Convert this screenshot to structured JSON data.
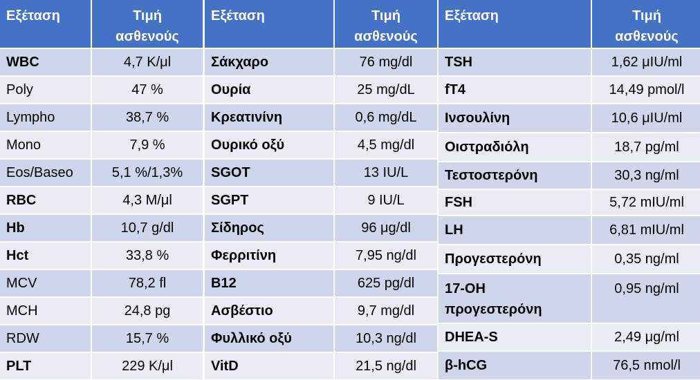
{
  "tables": [
    {
      "headers": [
        "Εξέταση",
        "Τιμή ασθενούς"
      ],
      "rows": [
        [
          "WBC",
          "4,7 K/μl"
        ],
        [
          "Poly",
          "47 %"
        ],
        [
          "Lympho",
          "38,7 %"
        ],
        [
          "Mono",
          "7,9 %"
        ],
        [
          "Eos/Baseo",
          "5,1 %/1,3%"
        ],
        [
          "RBC",
          "4,3 M/μl"
        ],
        [
          "Hb",
          "10,7 g/dl"
        ],
        [
          "Hct",
          "33,8 %"
        ],
        [
          "MCV",
          "78,2 fl"
        ],
        [
          "MCH",
          "24,8 pg"
        ],
        [
          "RDW",
          "15,7 %"
        ],
        [
          "PLT",
          "229 K/μl"
        ]
      ]
    },
    {
      "headers": [
        "Εξέταση",
        "Τιμή ασθενούς"
      ],
      "rows": [
        [
          "Σάκχαρο",
          "76 mg/dl"
        ],
        [
          "Ουρία",
          "25 mg/dL"
        ],
        [
          "Κρεατινίνη",
          "0,6 mg/dL"
        ],
        [
          "Ουρικό οξύ",
          "4,5 mg/dl"
        ],
        [
          "SGOT",
          "13 IU/L"
        ],
        [
          "SGPT",
          "9 IU/L"
        ],
        [
          "Σίδηρος",
          "96 μg/dl"
        ],
        [
          "Φερριτίνη",
          "7,95 ng/dl"
        ],
        [
          "B12",
          "625 pg/dl"
        ],
        [
          "Ασβέστιο",
          "9,7 mg/dl"
        ],
        [
          "Φυλλικό οξύ",
          "10,3 ng/dl"
        ],
        [
          "VitD",
          "21,5 ng/dl"
        ]
      ]
    },
    {
      "headers": [
        "Εξέταση",
        "Τιμή ασθενούς"
      ],
      "rows": [
        [
          "TSH",
          "1,62 μIU/ml"
        ],
        [
          "fT4",
          "14,49 pmol/l"
        ],
        [
          "Ινσουλίνη",
          "10,6 μIU/ml"
        ],
        [
          "Οιστραδιόλη",
          "18,7 pg/ml"
        ],
        [
          "Τεστοστερόνη",
          "30,3 ng/ml"
        ],
        [
          "FSH",
          "5,72 mIU/ml"
        ],
        [
          "LH",
          "6,81 mIU/ml"
        ],
        [
          "Προγεστερόνη",
          "0,35 ng/ml"
        ],
        [
          "17-OH προγεστερόνη",
          "0,95 ng/ml"
        ],
        [
          "DHEA-S",
          "2,49 μg/ml"
        ],
        [
          "β-hCG",
          "76,5 nmol/l"
        ]
      ]
    }
  ]
}
